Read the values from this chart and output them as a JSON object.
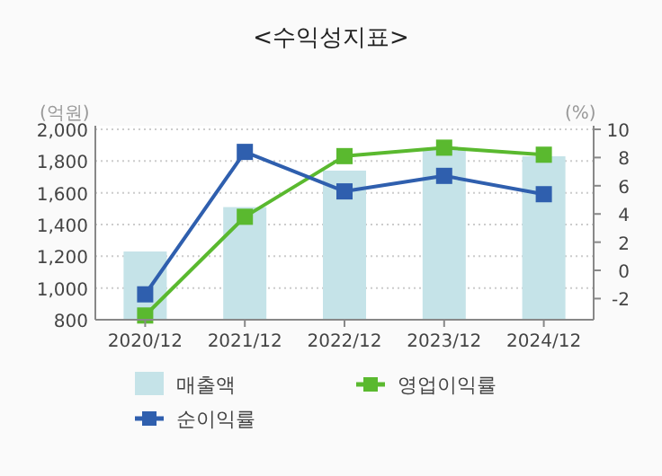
{
  "chart_data": {
    "type": "bar",
    "title": "<수익성지표>",
    "categories": [
      "2020/12",
      "2021/12",
      "2022/12",
      "2023/12",
      "2024/12"
    ],
    "series": [
      {
        "name": "매출액",
        "color": "#c5e3e8",
        "values": [
          1230,
          1510,
          1740,
          1870,
          1830
        ]
      },
      {
        "name": "영업이익률",
        "type": "line",
        "axis": "y2",
        "color": "#5ab92f",
        "values": [
          -3.2,
          3.8,
          8.1,
          8.7,
          8.2
        ]
      },
      {
        "name": "순이익률",
        "type": "line",
        "axis": "y2",
        "color": "#2f5fae",
        "values": [
          -1.7,
          8.4,
          5.6,
          6.7,
          5.4
        ]
      }
    ],
    "ylabel": "(억원)",
    "y2label": "(%)",
    "ylim": [
      800,
      2000
    ],
    "yticks": [
      {
        "value": 800,
        "label": "800"
      },
      {
        "value": 1000,
        "label": "1,000"
      },
      {
        "value": 1200,
        "label": "1,200"
      },
      {
        "value": 1400,
        "label": "1,400"
      },
      {
        "value": 1600,
        "label": "1,600"
      },
      {
        "value": 1800,
        "label": "1,800"
      },
      {
        "value": 2000,
        "label": "2,000"
      }
    ],
    "y2lim": [
      -3.5,
      10
    ],
    "y2ticks": [
      -2,
      0,
      2,
      4,
      6,
      8,
      10
    ],
    "grid": "y",
    "legend": "bottom",
    "marker": "square",
    "line_style": "solid"
  }
}
